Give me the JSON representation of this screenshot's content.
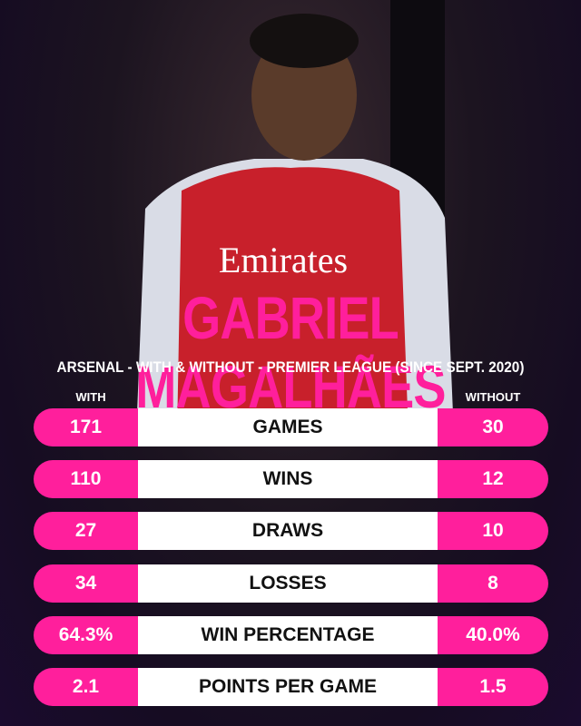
{
  "header": {
    "title": "GABRIEL MAGALHÃES",
    "subtitle": "ARSENAL - WITH & WITHOUT - PREMIER LEAGUE (SINCE SEPT. 2020)"
  },
  "table": {
    "columns": [
      "WITH",
      "WITHOUT"
    ],
    "rows": [
      [
        "171",
        "GAMES",
        "30"
      ],
      [
        "110",
        "WINS",
        "12"
      ],
      [
        "27",
        "DRAWS",
        "10"
      ],
      [
        "34",
        "LOSSES",
        "8"
      ],
      [
        "64.3%",
        "WIN PERCENTAGE",
        "40.0%"
      ],
      [
        "2.1",
        "POINTS PER GAME",
        "1.5"
      ]
    ]
  }
}
